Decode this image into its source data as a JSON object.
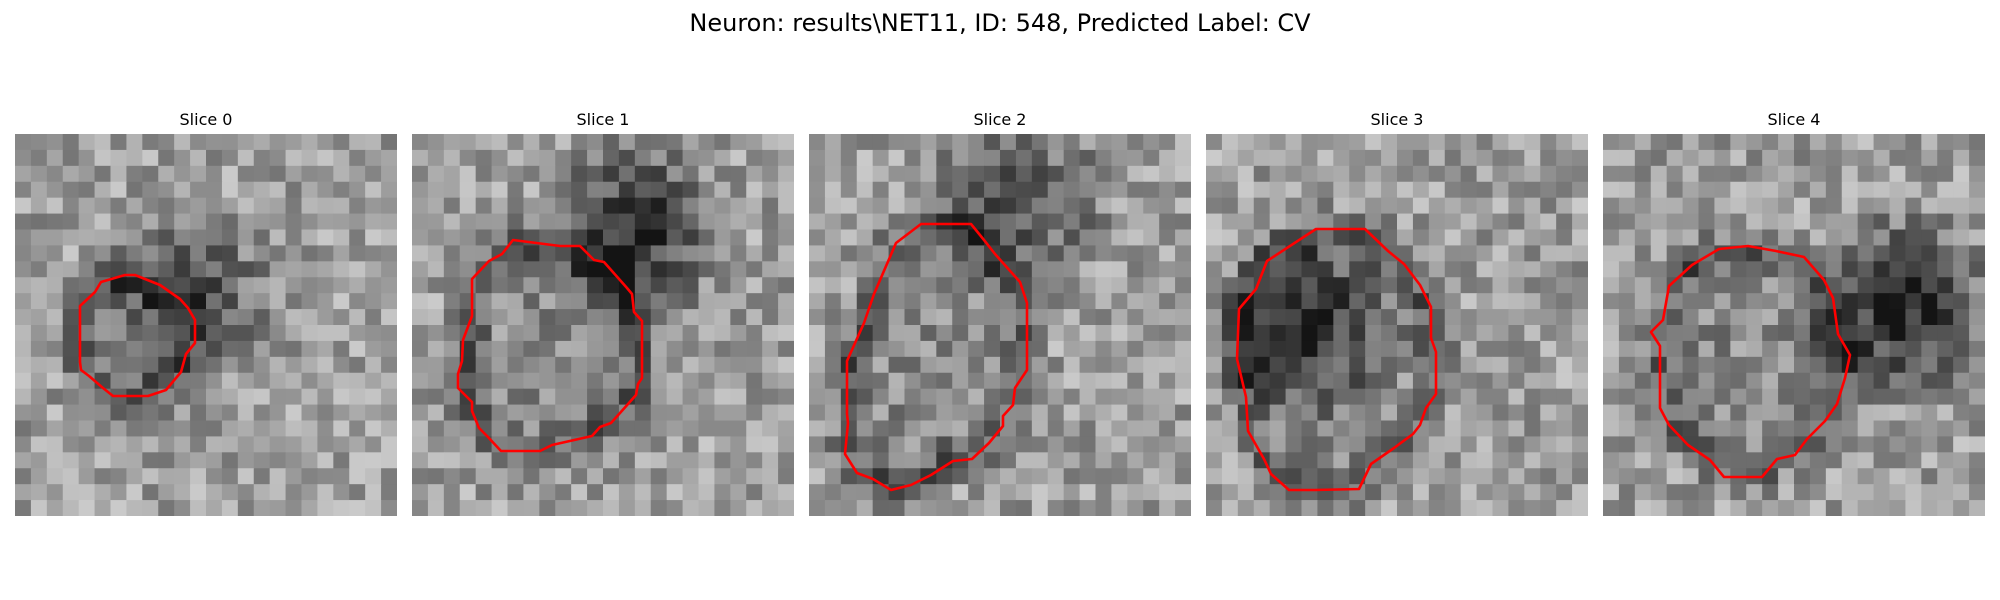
{
  "figure": {
    "title": "Neuron: results\\NET11, ID: 548, Predicted Label: CV"
  },
  "contour_color": "#ff0000",
  "panels": [
    {
      "title": "Slice 0",
      "seed": 11,
      "dark_center": [
        0.45,
        0.42
      ],
      "dark_strength": 0.35
    },
    {
      "title": "Slice 1",
      "seed": 23,
      "dark_center": [
        0.58,
        0.25
      ],
      "dark_strength": 0.5
    },
    {
      "title": "Slice 2",
      "seed": 37,
      "dark_center": [
        0.55,
        0.18
      ],
      "dark_strength": 0.35
    },
    {
      "title": "Slice 3",
      "seed": 51,
      "dark_center": [
        0.25,
        0.5
      ],
      "dark_strength": 0.45
    },
    {
      "title": "Slice 4",
      "seed": 67,
      "dark_center": [
        0.78,
        0.45
      ],
      "dark_strength": 0.55
    }
  ]
}
